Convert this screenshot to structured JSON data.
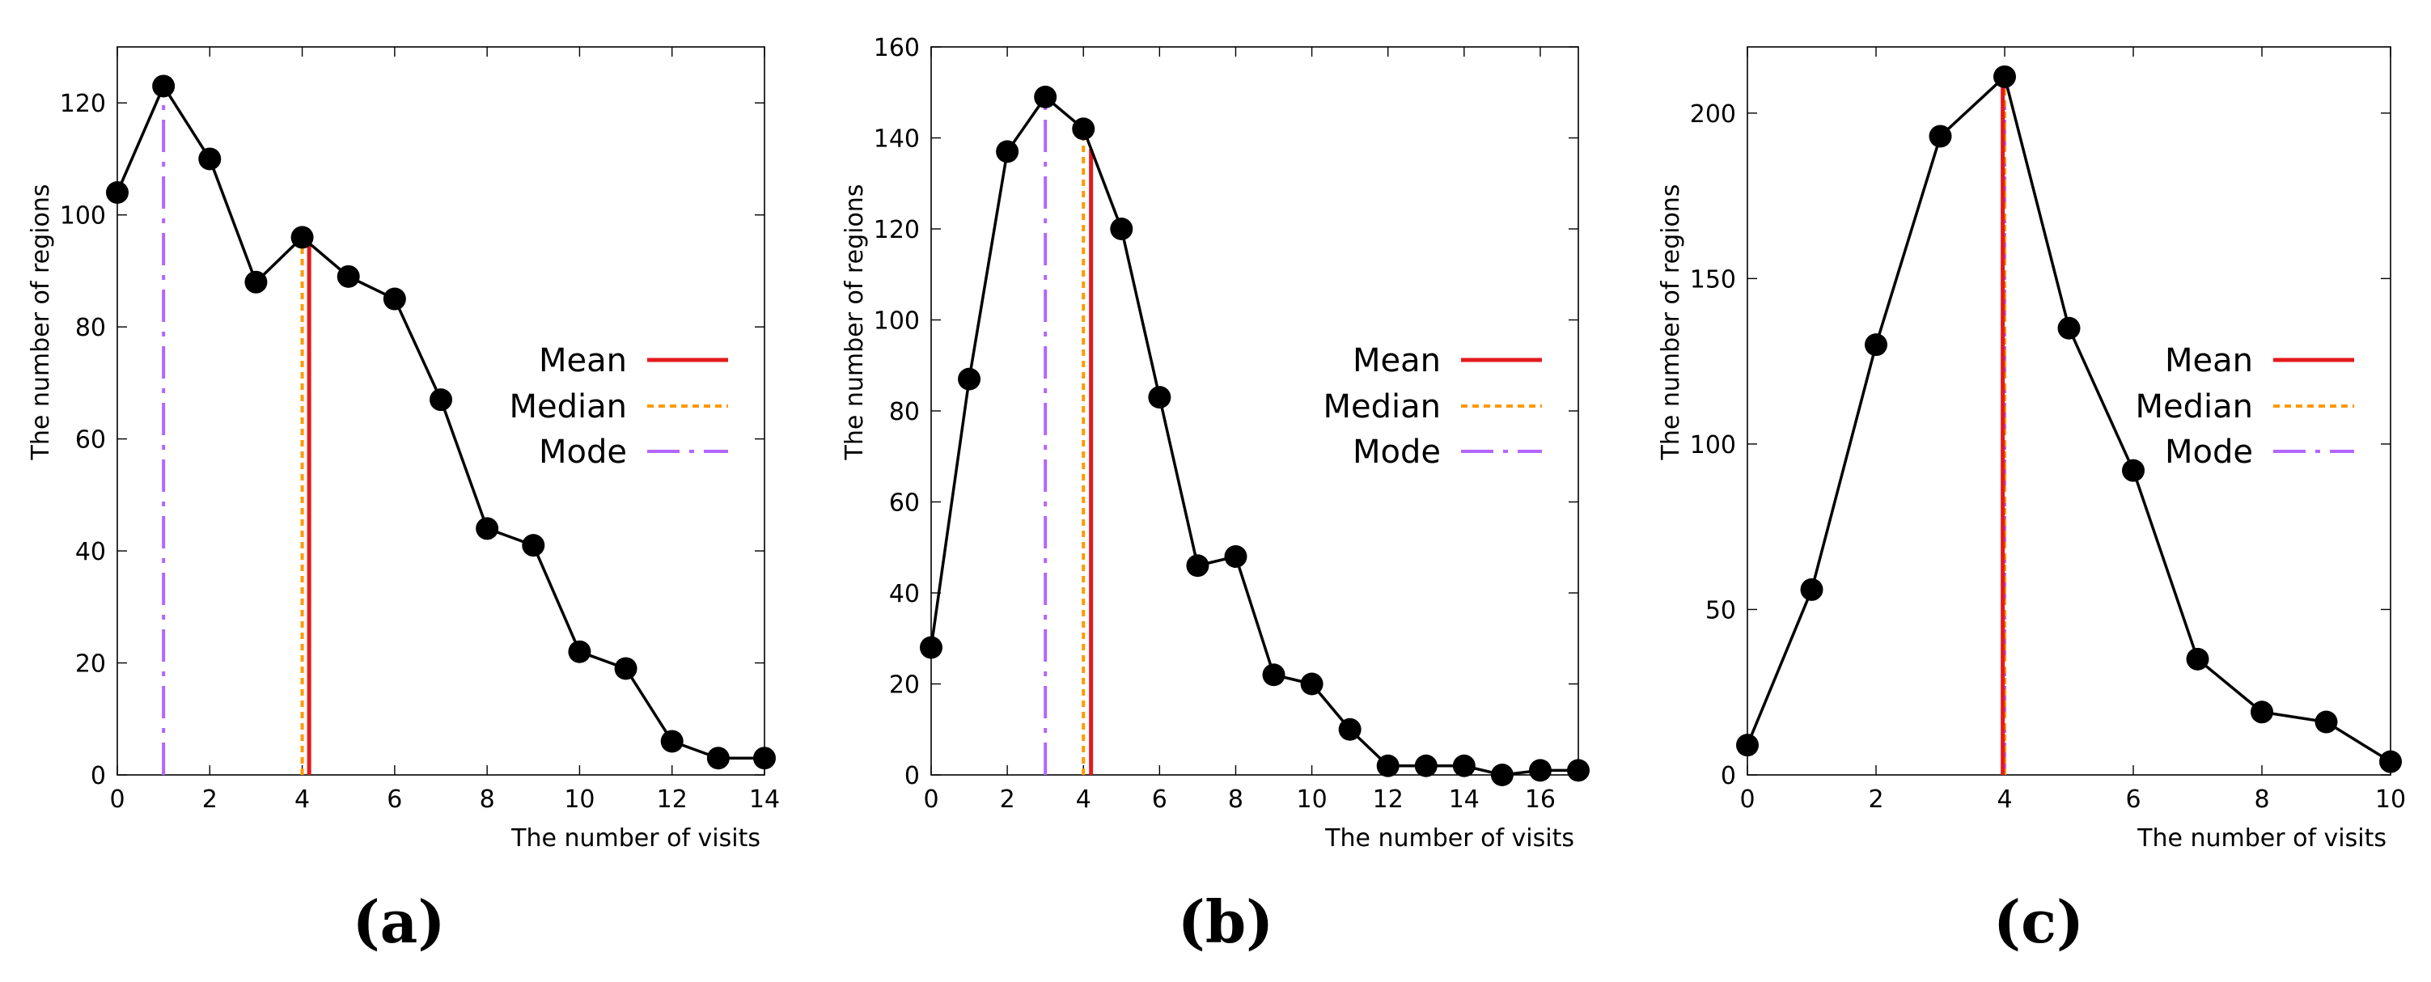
{
  "chart_data": [
    {
      "type": "line",
      "panel_label": "(a)",
      "xlabel": "The number of visits",
      "ylabel": "The number of regions",
      "xlim": [
        0,
        14
      ],
      "ylim": [
        0,
        130
      ],
      "xticks": [
        0,
        2,
        4,
        6,
        8,
        10,
        12,
        14
      ],
      "yticks": [
        0,
        20,
        40,
        60,
        80,
        100,
        120
      ],
      "x": [
        0,
        1,
        2,
        3,
        4,
        5,
        6,
        7,
        8,
        9,
        10,
        11,
        12,
        13,
        14
      ],
      "y": [
        104,
        123,
        110,
        88,
        96,
        89,
        85,
        67,
        44,
        41,
        22,
        19,
        6,
        3,
        3
      ],
      "stats": {
        "mean": 4.15,
        "median": 4.0,
        "mode": 1.0
      },
      "legend": [
        "Mean",
        "Median",
        "Mode"
      ],
      "legend_position": "center-right"
    },
    {
      "type": "line",
      "panel_label": "(b)",
      "xlabel": "The number of visits",
      "ylabel": "The number of regions",
      "xlim": [
        0,
        17
      ],
      "ylim": [
        0,
        160
      ],
      "xticks": [
        0,
        2,
        4,
        6,
        8,
        10,
        12,
        14,
        16
      ],
      "yticks": [
        0,
        20,
        40,
        60,
        80,
        100,
        120,
        140,
        160
      ],
      "x": [
        0,
        1,
        2,
        3,
        4,
        5,
        6,
        7,
        8,
        9,
        10,
        11,
        12,
        13,
        14,
        15,
        16,
        17
      ],
      "y": [
        28,
        87,
        137,
        149,
        142,
        120,
        83,
        46,
        48,
        22,
        20,
        10,
        2,
        2,
        2,
        0,
        1,
        1
      ],
      "stats": {
        "mean": 4.2,
        "median": 4.0,
        "mode": 3.0
      },
      "legend": [
        "Mean",
        "Median",
        "Mode"
      ],
      "legend_position": "center-right"
    },
    {
      "type": "line",
      "panel_label": "(c)",
      "xlabel": "The number of visits",
      "ylabel": "The number of regions",
      "xlim": [
        0,
        10
      ],
      "ylim": [
        0,
        220
      ],
      "xticks": [
        0,
        2,
        4,
        6,
        8,
        10
      ],
      "yticks": [
        0,
        50,
        100,
        150,
        200
      ],
      "x": [
        0,
        1,
        2,
        3,
        4,
        5,
        6,
        7,
        8,
        9,
        10
      ],
      "y": [
        9,
        56,
        130,
        193,
        211,
        135,
        92,
        35,
        19,
        16,
        4
      ],
      "stats": {
        "mean": 3.97,
        "median": 4.0,
        "mode": 4.0
      },
      "legend": [
        "Mean",
        "Median",
        "Mode"
      ],
      "legend_position": "center-right"
    }
  ],
  "colors": {
    "mean": "#e41a1c",
    "median": "#ff9900",
    "mode": "#b266ff",
    "series": "#000000"
  }
}
